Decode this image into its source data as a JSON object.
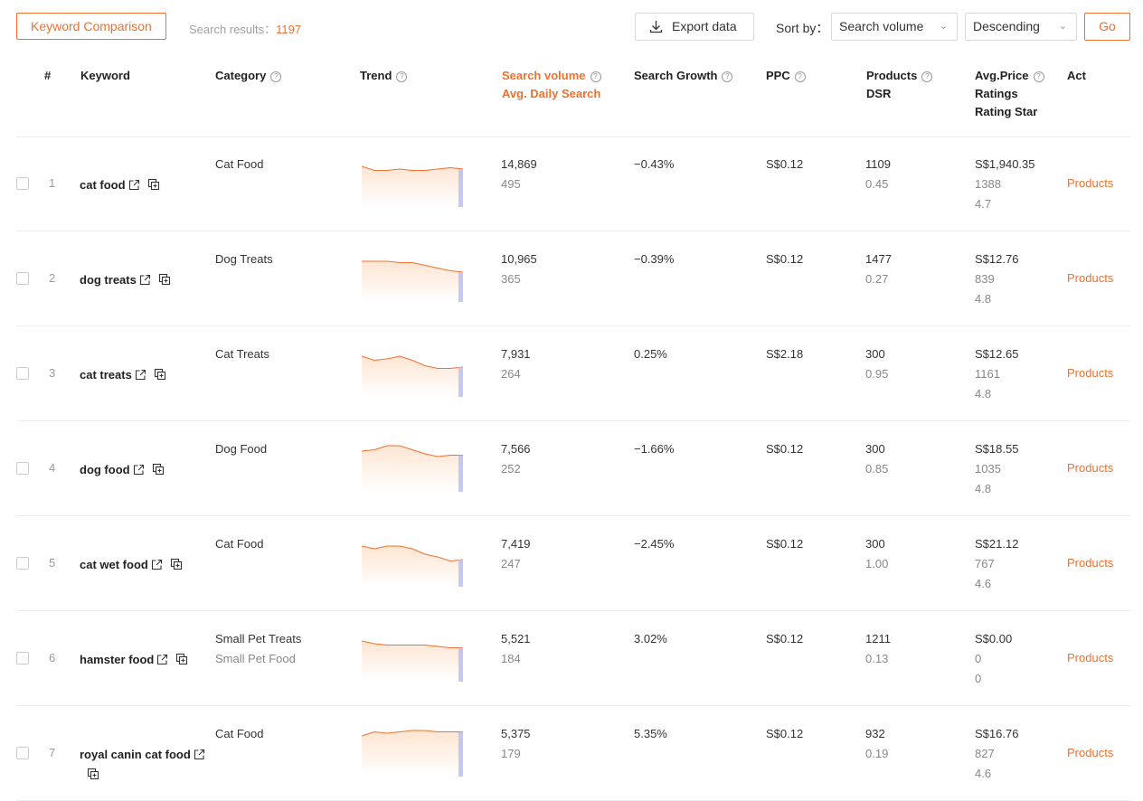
{
  "toolbar": {
    "compare_label": "Keyword Comparison",
    "results_label": "Search results：",
    "results_count": "1197",
    "export_label": "Export data",
    "sort_label": "Sort by：",
    "sort_value": "Search volume",
    "order_value": "Descending",
    "go_label": "Go"
  },
  "columns": {
    "index": "#",
    "keyword": "Keyword",
    "category": "Category",
    "trend": "Trend",
    "volume": "Search volume",
    "daily": "Avg. Daily Search",
    "growth": "Search Growth",
    "ppc": "PPC",
    "products": "Products",
    "dsr": "DSR",
    "price": "Avg.Price",
    "ratings": "Ratings",
    "stars": "Rating Star",
    "act": "Act"
  },
  "rows": [
    {
      "index": "1",
      "keyword": "cat food",
      "category": "Cat Food",
      "category2": "",
      "volume": "14,869",
      "daily": "495",
      "growth": "−0.43%",
      "ppc": "S$0.12",
      "products": "1109",
      "dsr": "0.45",
      "price": "S$1,940.35",
      "ratings": "1388",
      "stars": "4.7",
      "action": "Products",
      "trend": [
        30,
        27,
        27,
        28,
        27,
        27,
        28,
        29,
        28
      ]
    },
    {
      "index": "2",
      "keyword": "dog treats",
      "category": "Dog Treats",
      "category2": "",
      "volume": "10,965",
      "daily": "365",
      "growth": "−0.39%",
      "ppc": "S$0.12",
      "products": "1477",
      "dsr": "0.27",
      "price": "S$12.76",
      "ratings": "839",
      "stars": "4.8",
      "action": "Products",
      "trend": [
        30,
        30,
        30,
        29,
        29,
        27,
        25,
        23,
        22
      ]
    },
    {
      "index": "3",
      "keyword": "cat treats",
      "category": "Cat Treats",
      "category2": "",
      "volume": "7,931",
      "daily": "264",
      "growth": "0.25%",
      "ppc": "S$2.18",
      "products": "300",
      "dsr": "0.95",
      "price": "S$12.65",
      "ratings": "1161",
      "stars": "4.8",
      "action": "Products",
      "trend": [
        30,
        27,
        28,
        30,
        27,
        23,
        21,
        21,
        22
      ]
    },
    {
      "index": "4",
      "keyword": "dog food",
      "category": "Dog Food",
      "category2": "",
      "volume": "7,566",
      "daily": "252",
      "growth": "−1.66%",
      "ppc": "S$0.12",
      "products": "300",
      "dsr": "0.85",
      "price": "S$18.55",
      "ratings": "1035",
      "stars": "4.8",
      "action": "Products",
      "trend": [
        30,
        31,
        34,
        34,
        31,
        28,
        26,
        27,
        27
      ]
    },
    {
      "index": "5",
      "keyword": "cat wet food",
      "category": "Cat Food",
      "category2": "",
      "volume": "7,419",
      "daily": "247",
      "growth": "−2.45%",
      "ppc": "S$0.12",
      "products": "300",
      "dsr": "1.00",
      "price": "S$21.12",
      "ratings": "767",
      "stars": "4.6",
      "action": "Products",
      "trend": [
        30,
        28,
        30,
        30,
        28,
        24,
        22,
        19,
        20
      ]
    },
    {
      "index": "6",
      "keyword": "hamster food",
      "category": "Small Pet Treats",
      "category2": "Small Pet Food",
      "volume": "5,521",
      "daily": "184",
      "growth": "3.02%",
      "ppc": "S$0.12",
      "products": "1211",
      "dsr": "0.13",
      "price": "S$0.00",
      "ratings": "0",
      "stars": "0",
      "action": "Products",
      "trend": [
        30,
        28,
        27,
        27,
        27,
        27,
        26,
        25,
        25
      ]
    },
    {
      "index": "7",
      "keyword": "royal canin cat food",
      "category": "Cat Food",
      "category2": "",
      "volume": "5,375",
      "daily": "179",
      "growth": "5.35%",
      "ppc": "S$0.12",
      "products": "932",
      "dsr": "0.19",
      "price": "S$16.76",
      "ratings": "827",
      "stars": "4.6",
      "action": "Products",
      "trend": [
        30,
        33,
        32,
        33,
        34,
        34,
        33,
        33,
        33
      ]
    }
  ],
  "colors": {
    "accent": "#f0702e",
    "trend_fill": "#fde5d2",
    "trend_bar": "#b8bdf0"
  }
}
